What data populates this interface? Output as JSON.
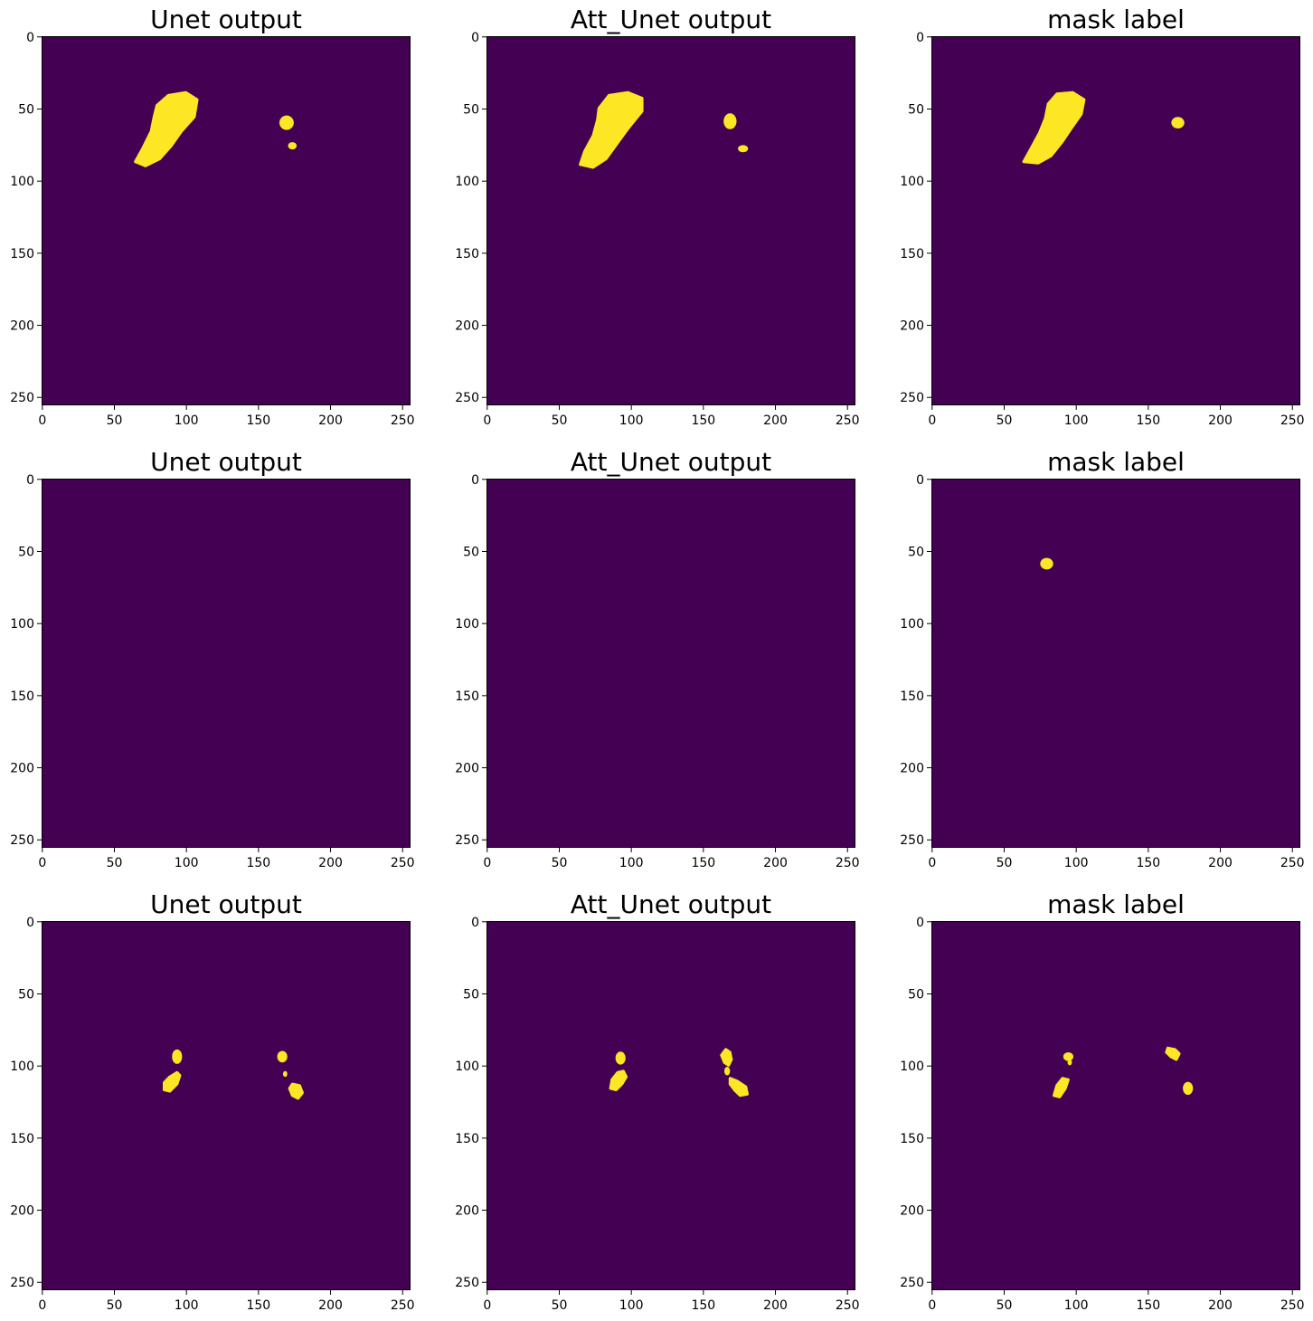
{
  "chart_data": {
    "type": "heatmap",
    "image_size": [
      256,
      256
    ],
    "background_color": "#440154",
    "foreground_color": "#fde725",
    "xticks": [
      0,
      50,
      100,
      150,
      200,
      250
    ],
    "yticks": [
      0,
      50,
      100,
      150,
      200,
      250
    ],
    "xlim": [
      0,
      256
    ],
    "ylim": [
      256,
      0
    ],
    "panels": [
      {
        "title": "Unet output",
        "blobs": [
          {
            "type": "poly",
            "points": [
              [
                80,
                48
              ],
              [
                88,
                41
              ],
              [
                100,
                39
              ],
              [
                108,
                44
              ],
              [
                106,
                56
              ],
              [
                97,
                66
              ],
              [
                90,
                76
              ],
              [
                82,
                85
              ],
              [
                72,
                90
              ],
              [
                65,
                87
              ],
              [
                70,
                78
              ],
              [
                76,
                66
              ],
              [
                78,
                56
              ]
            ]
          },
          {
            "type": "ellipse",
            "cx": 170,
            "cy": 60,
            "rx": 5,
            "ry": 5
          },
          {
            "type": "ellipse",
            "cx": 174,
            "cy": 76,
            "rx": 3,
            "ry": 2.5
          }
        ]
      },
      {
        "title": "Att_Unet output",
        "blobs": [
          {
            "type": "poly",
            "points": [
              [
                78,
                50
              ],
              [
                85,
                41
              ],
              [
                98,
                39
              ],
              [
                108,
                43
              ],
              [
                108,
                52
              ],
              [
                99,
                63
              ],
              [
                91,
                74
              ],
              [
                83,
                85
              ],
              [
                74,
                91
              ],
              [
                65,
                89
              ],
              [
                68,
                80
              ],
              [
                74,
                69
              ],
              [
                77,
                58
              ]
            ]
          },
          {
            "type": "ellipse",
            "cx": 169,
            "cy": 59,
            "rx": 4.5,
            "ry": 5.5
          },
          {
            "type": "ellipse",
            "cx": 178,
            "cy": 78,
            "rx": 3.5,
            "ry": 2.5
          }
        ]
      },
      {
        "title": "mask label",
        "blobs": [
          {
            "type": "poly",
            "points": [
              [
                81,
                47
              ],
              [
                87,
                40
              ],
              [
                98,
                39
              ],
              [
                106,
                44
              ],
              [
                104,
                54
              ],
              [
                97,
                64
              ],
              [
                91,
                73
              ],
              [
                83,
                83
              ],
              [
                74,
                88
              ],
              [
                64,
                87
              ],
              [
                69,
                78
              ],
              [
                75,
                67
              ],
              [
                79,
                57
              ]
            ]
          },
          {
            "type": "ellipse",
            "cx": 171,
            "cy": 60,
            "rx": 4.5,
            "ry": 4
          }
        ]
      },
      {
        "title": "Unet output",
        "blobs": []
      },
      {
        "title": "Att_Unet output",
        "blobs": []
      },
      {
        "title": "mask label",
        "blobs": [
          {
            "type": "ellipse",
            "cx": 80,
            "cy": 59,
            "rx": 4.5,
            "ry": 4
          }
        ]
      },
      {
        "title": "Unet output",
        "blobs": [
          {
            "type": "ellipse",
            "cx": 94,
            "cy": 94,
            "rx": 3.5,
            "ry": 5
          },
          {
            "type": "poly",
            "points": [
              [
                89,
                108
              ],
              [
                94,
                105
              ],
              [
                96,
                107
              ],
              [
                94,
                113
              ],
              [
                89,
                118
              ],
              [
                85,
                117
              ],
              [
                85,
                112
              ]
            ]
          },
          {
            "type": "ellipse",
            "cx": 167,
            "cy": 94,
            "rx": 3.5,
            "ry": 4
          },
          {
            "type": "ellipse",
            "cx": 169,
            "cy": 106,
            "rx": 1.5,
            "ry": 2
          },
          {
            "type": "poly",
            "points": [
              [
                174,
                113
              ],
              [
                179,
                114
              ],
              [
                181,
                119
              ],
              [
                178,
                123
              ],
              [
                174,
                121
              ],
              [
                172,
                116
              ]
            ]
          }
        ]
      },
      {
        "title": "Att_Unet output",
        "blobs": [
          {
            "type": "ellipse",
            "cx": 93,
            "cy": 95,
            "rx": 3.5,
            "ry": 4.5
          },
          {
            "type": "poly",
            "points": [
              [
                91,
                105
              ],
              [
                95,
                104
              ],
              [
                97,
                108
              ],
              [
                94,
                113
              ],
              [
                90,
                117
              ],
              [
                86,
                116
              ],
              [
                87,
                110
              ]
            ]
          },
          {
            "type": "poly",
            "points": [
              [
                163,
                93
              ],
              [
                166,
                89
              ],
              [
                169,
                91
              ],
              [
                170,
                96
              ],
              [
                168,
                100
              ],
              [
                165,
                98
              ]
            ]
          },
          {
            "type": "ellipse",
            "cx": 167,
            "cy": 104,
            "rx": 2,
            "ry": 3
          },
          {
            "type": "poly",
            "points": [
              [
                169,
                109
              ],
              [
                174,
                111
              ],
              [
                180,
                115
              ],
              [
                181,
                120
              ],
              [
                176,
                121
              ],
              [
                172,
                117
              ],
              [
                169,
                113
              ]
            ]
          }
        ]
      },
      {
        "title": "mask label",
        "blobs": [
          {
            "type": "ellipse",
            "cx": 95,
            "cy": 94,
            "rx": 3.5,
            "ry": 3
          },
          {
            "type": "ellipse",
            "cx": 96,
            "cy": 98,
            "rx": 1.5,
            "ry": 2
          },
          {
            "type": "poly",
            "points": [
              [
                91,
                109
              ],
              [
                95,
                110
              ],
              [
                93,
                116
              ],
              [
                89,
                122
              ],
              [
                85,
                121
              ],
              [
                87,
                114
              ]
            ]
          },
          {
            "type": "poly",
            "points": [
              [
                164,
                88
              ],
              [
                169,
                89
              ],
              [
                172,
                92
              ],
              [
                170,
                96
              ],
              [
                166,
                94
              ],
              [
                163,
                91
              ]
            ]
          },
          {
            "type": "ellipse",
            "cx": 178,
            "cy": 116,
            "rx": 3.5,
            "ry": 4.5
          }
        ]
      }
    ]
  }
}
